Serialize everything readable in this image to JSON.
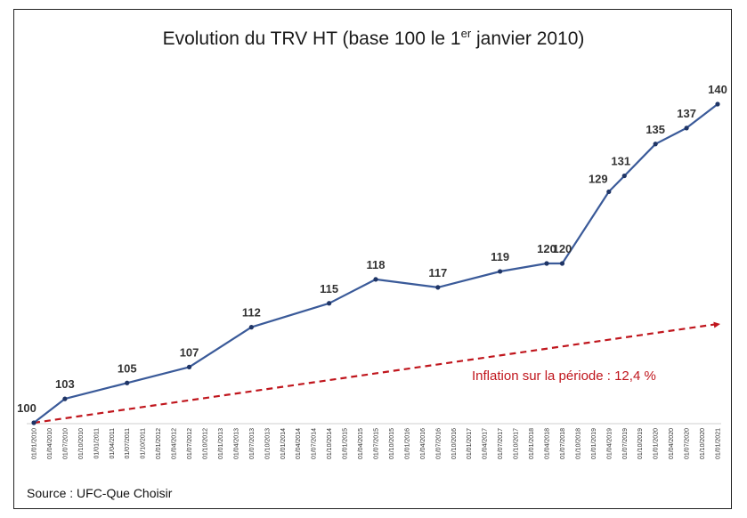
{
  "title": {
    "main": "Evolution du TRV HT (base 100 le 1",
    "sup": "er",
    "rest": " janvier 2010)"
  },
  "source": "Source : UFC-Que Choisir",
  "inflation_label": "Inflation sur la période : 12,4 %",
  "colors": {
    "series": "#3a5a99",
    "inflation": "#c0161d",
    "labels": "#333333"
  },
  "chart_data": {
    "type": "line",
    "x_ticks": [
      "01/01/2010",
      "01/04/2010",
      "01/07/2010",
      "01/10/2010",
      "01/01/2011",
      "01/04/2011",
      "01/07/2011",
      "01/10/2011",
      "01/01/2012",
      "01/04/2012",
      "01/07/2012",
      "01/10/2012",
      "01/01/2013",
      "01/04/2013",
      "01/07/2013",
      "01/10/2013",
      "01/01/2014",
      "01/04/2014",
      "01/07/2014",
      "01/10/2014",
      "01/01/2015",
      "01/04/2015",
      "01/07/2015",
      "01/10/2015",
      "01/01/2016",
      "01/04/2016",
      "01/07/2016",
      "01/10/2016",
      "01/01/2017",
      "01/04/2017",
      "01/07/2017",
      "01/10/2017",
      "01/01/2018",
      "01/04/2018",
      "01/07/2018",
      "01/10/2018",
      "01/01/2019",
      "01/04/2019",
      "01/07/2019",
      "01/10/2019",
      "01/01/2020",
      "01/04/2020",
      "01/07/2020",
      "01/10/2020",
      "01/01/2021"
    ],
    "series": [
      {
        "points": [
          {
            "x": "01/01/2010",
            "y": 100,
            "label": "100"
          },
          {
            "x": "01/07/2010",
            "y": 103,
            "label": "103"
          },
          {
            "x": "01/07/2011",
            "y": 105,
            "label": "105"
          },
          {
            "x": "01/07/2012",
            "y": 107,
            "label": "107"
          },
          {
            "x": "01/07/2013",
            "y": 112,
            "label": "112"
          },
          {
            "x": "01/10/2014",
            "y": 115,
            "label": "115"
          },
          {
            "x": "01/07/2015",
            "y": 118,
            "label": "118"
          },
          {
            "x": "01/07/2016",
            "y": 117,
            "label": "117"
          },
          {
            "x": "01/07/2017",
            "y": 119,
            "label": "119"
          },
          {
            "x": "01/04/2018",
            "y": 120,
            "label": "120"
          },
          {
            "x": "01/07/2018",
            "y": 120,
            "label": "120"
          },
          {
            "x": "01/04/2019",
            "y": 129,
            "label": "129"
          },
          {
            "x": "01/07/2019",
            "y": 131,
            "label": "131"
          },
          {
            "x": "01/01/2020",
            "y": 135,
            "label": "135"
          },
          {
            "x": "01/07/2020",
            "y": 137,
            "label": "137"
          },
          {
            "x": "01/01/2021",
            "y": 140,
            "label": "140"
          }
        ]
      }
    ],
    "inflation_trend": {
      "start": {
        "x": "01/01/2010",
        "y": 100
      },
      "end": {
        "x": "01/01/2021",
        "y": 112.4
      }
    },
    "ylim": [
      100,
      140
    ],
    "grid": false,
    "y_axis_visible": false
  }
}
